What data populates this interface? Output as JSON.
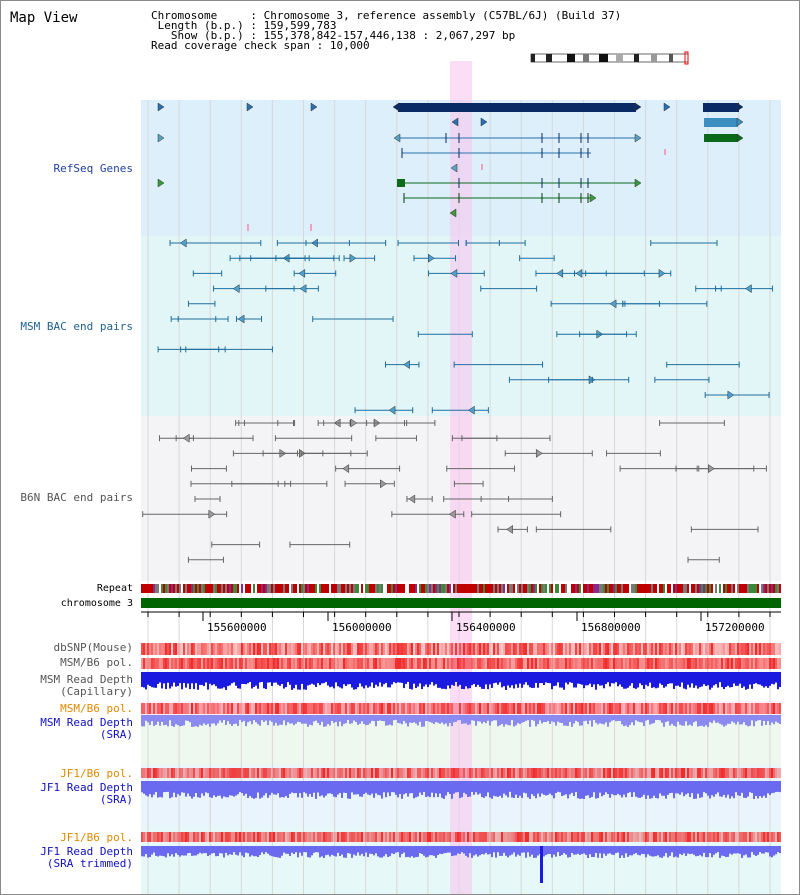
{
  "title": "Map View",
  "header": {
    "chromosome_label": "Chromosome",
    "chromosome_value": "Chromosome 3, reference assembly (C57BL/6J) (Build 37)",
    "length_label": "Length (b.p.)",
    "length_value": "159,599,783",
    "show_label": "Show (b.p.)",
    "show_value": "155,378,842-157,446,138 : 2,067,297 bp",
    "coverage_label": "Read coverage check span",
    "coverage_value": "10,000"
  },
  "tracks": {
    "refseq": {
      "label": "RefSeq Genes",
      "color": "#1f3f9f"
    },
    "msm_bac": {
      "label": "MSM BAC end pairs",
      "color": "#1f5f8f"
    },
    "b6n_bac": {
      "label": "B6N BAC end pairs",
      "color": "#555555"
    },
    "repeat": {
      "label": "Repeat"
    },
    "chromosome": {
      "label": "chromosome 3"
    },
    "dbsnp": {
      "label": "dbSNP(Mouse)",
      "color": "#555555"
    },
    "msm_b6_pol_1": {
      "label": "MSM/B6 pol.",
      "color": "#555555"
    },
    "msm_depth_cap": {
      "label_1": "MSM Read Depth",
      "label_2": "(Capillary)",
      "color": "#555555"
    },
    "msm_b6_pol_2": {
      "label": "MSM/B6 pol.",
      "color": "#e08a00"
    },
    "msm_depth_sra": {
      "label_1": "MSM Read Depth",
      "label_2": "(SRA)",
      "color": "#1010c0"
    },
    "jf1_b6_pol_1": {
      "label": "JF1/B6 pol.",
      "color": "#e08a00"
    },
    "jf1_depth_sra": {
      "label_1": "JF1 Read Depth",
      "label_2": "(SRA)",
      "color": "#1010c0"
    },
    "jf1_b6_pol_2": {
      "label": "JF1/B6 pol.",
      "color": "#e08a00"
    },
    "jf1_depth_trim": {
      "label_1": "JF1 Read Depth",
      "label_2": "(SRA trimmed)",
      "color": "#1010c0"
    }
  },
  "axis": {
    "ticks": [
      "155600000",
      "156000000",
      "156400000",
      "156800000",
      "157200000"
    ]
  }
}
